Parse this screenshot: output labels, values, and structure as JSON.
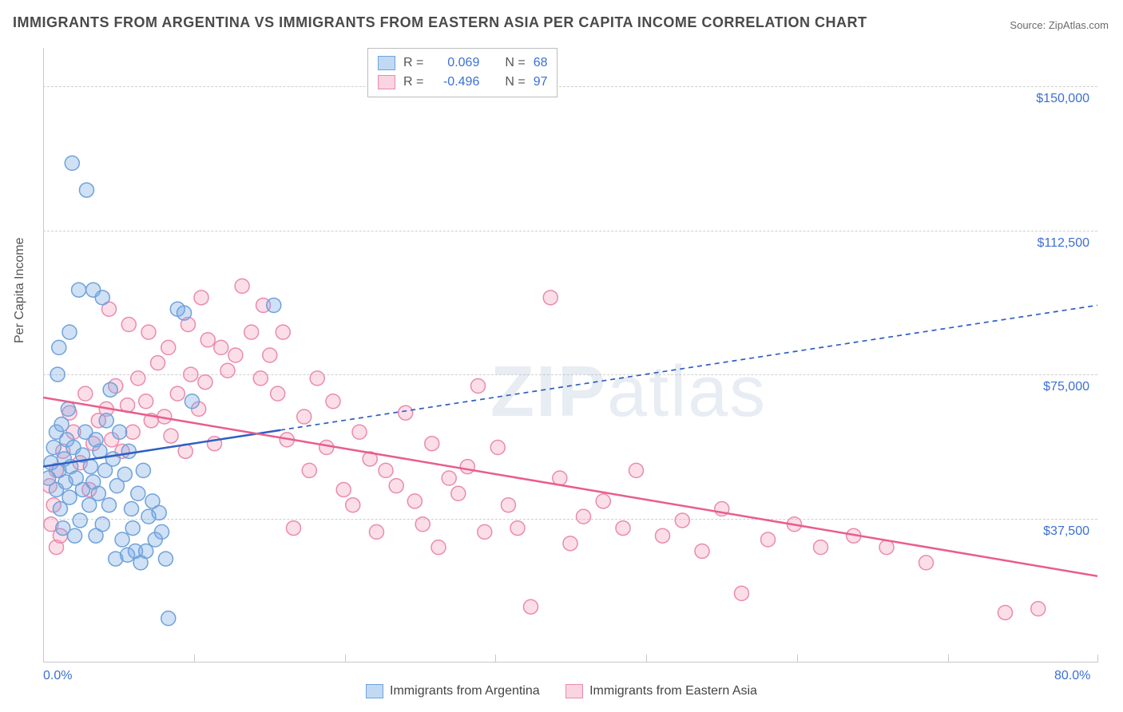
{
  "title": "IMMIGRANTS FROM ARGENTINA VS IMMIGRANTS FROM EASTERN ASIA PER CAPITA INCOME CORRELATION CHART",
  "source_label": "Source:",
  "source_name": "ZipAtlas.com",
  "watermark": {
    "bold": "ZIP",
    "rest": "atlas"
  },
  "chart": {
    "type": "scatter",
    "background_color": "#ffffff",
    "grid_color": "#d0d0d0",
    "axis_color": "#c8c8c8",
    "label_color": "#3b6fd6",
    "ylabel": "Per Capita Income",
    "ylabel_color": "#555555",
    "xlim": [
      0,
      80
    ],
    "ylim": [
      0,
      160000
    ],
    "x_tick_labels": {
      "min": "0.0%",
      "max": "80.0%"
    },
    "x_tick_positions_pct": [
      0,
      14.3,
      28.6,
      42.9,
      57.2,
      71.5,
      85.8,
      100
    ],
    "y_ticks": [
      {
        "value": 37500,
        "label": "$37,500"
      },
      {
        "value": 75000,
        "label": "$75,000"
      },
      {
        "value": 112500,
        "label": "$112,500"
      },
      {
        "value": 150000,
        "label": "$150,000"
      }
    ],
    "marker_radius": 9,
    "marker_stroke_width": 1.5,
    "series": [
      {
        "id": "argentina",
        "label": "Immigrants from Argentina",
        "fill": "rgba(120,170,230,0.35)",
        "stroke": "#6fa2da",
        "swatch_fill": "rgba(120,170,230,0.45)",
        "swatch_border": "#6fa2da",
        "stats": {
          "R": "0.069",
          "N": "68"
        },
        "trend": {
          "solid": {
            "x1": 0,
            "y1": 51000,
            "x2": 18,
            "y2": 60500
          },
          "dashed": {
            "x1": 18,
            "y1": 60500,
            "x2": 80,
            "y2": 93000
          },
          "color": "#2f5fc4",
          "width": 2.5,
          "dash": "6,5"
        },
        "points": [
          [
            0.4,
            48000
          ],
          [
            0.6,
            52000
          ],
          [
            0.8,
            56000
          ],
          [
            1.0,
            60000
          ],
          [
            1.0,
            45000
          ],
          [
            1.1,
            75000
          ],
          [
            1.2,
            50000
          ],
          [
            1.3,
            40000
          ],
          [
            1.4,
            62000
          ],
          [
            1.5,
            35000
          ],
          [
            1.6,
            53000
          ],
          [
            1.7,
            47000
          ],
          [
            1.8,
            58000
          ],
          [
            1.9,
            66000
          ],
          [
            2.0,
            43000
          ],
          [
            2.1,
            51000
          ],
          [
            2.2,
            130000
          ],
          [
            2.3,
            56000
          ],
          [
            2.4,
            33000
          ],
          [
            2.5,
            48000
          ],
          [
            2.7,
            97000
          ],
          [
            2.8,
            37000
          ],
          [
            3.0,
            45000
          ],
          [
            3.0,
            54000
          ],
          [
            3.2,
            60000
          ],
          [
            3.3,
            123000
          ],
          [
            3.5,
            41000
          ],
          [
            3.6,
            51000
          ],
          [
            3.8,
            47000
          ],
          [
            4.0,
            58000
          ],
          [
            4.0,
            33000
          ],
          [
            4.2,
            44000
          ],
          [
            4.3,
            55000
          ],
          [
            4.5,
            36000
          ],
          [
            4.7,
            50000
          ],
          [
            4.8,
            63000
          ],
          [
            5.0,
            41000
          ],
          [
            5.1,
            71000
          ],
          [
            5.3,
            53000
          ],
          [
            5.5,
            27000
          ],
          [
            5.6,
            46000
          ],
          [
            5.8,
            60000
          ],
          [
            6.0,
            32000
          ],
          [
            6.2,
            49000
          ],
          [
            6.4,
            28000
          ],
          [
            6.5,
            55000
          ],
          [
            6.7,
            40000
          ],
          [
            6.8,
            35000
          ],
          [
            7.0,
            29000
          ],
          [
            7.2,
            44000
          ],
          [
            7.4,
            26000
          ],
          [
            7.6,
            50000
          ],
          [
            7.8,
            29000
          ],
          [
            8.0,
            38000
          ],
          [
            8.3,
            42000
          ],
          [
            8.5,
            32000
          ],
          [
            8.8,
            39000
          ],
          [
            9.0,
            34000
          ],
          [
            9.3,
            27000
          ],
          [
            9.5,
            11500
          ],
          [
            10.2,
            92000
          ],
          [
            10.7,
            91000
          ],
          [
            11.3,
            68000
          ],
          [
            3.8,
            97000
          ],
          [
            4.5,
            95000
          ],
          [
            1.2,
            82000
          ],
          [
            2.0,
            86000
          ],
          [
            17.5,
            93000
          ]
        ]
      },
      {
        "id": "eastern_asia",
        "label": "Immigrants from Eastern Asia",
        "fill": "rgba(245,160,190,0.35)",
        "stroke": "#e98bad",
        "swatch_fill": "rgba(245,160,190,0.45)",
        "swatch_border": "#e98bad",
        "stats": {
          "R": "-0.496",
          "N": "97"
        },
        "trend": {
          "solid": {
            "x1": 0,
            "y1": 69000,
            "x2": 80,
            "y2": 22500
          },
          "color": "#e95d8a",
          "width": 2.5
        },
        "points": [
          [
            0.6,
            36000
          ],
          [
            1.0,
            50000
          ],
          [
            1.5,
            55000
          ],
          [
            2.0,
            65000
          ],
          [
            2.3,
            60000
          ],
          [
            2.8,
            52000
          ],
          [
            3.2,
            70000
          ],
          [
            3.5,
            45000
          ],
          [
            3.8,
            57000
          ],
          [
            4.2,
            63000
          ],
          [
            4.8,
            66000
          ],
          [
            5.2,
            58000
          ],
          [
            5.5,
            72000
          ],
          [
            6.0,
            55000
          ],
          [
            6.4,
            67000
          ],
          [
            6.8,
            60000
          ],
          [
            7.2,
            74000
          ],
          [
            7.8,
            68000
          ],
          [
            8.2,
            63000
          ],
          [
            8.7,
            78000
          ],
          [
            9.2,
            64000
          ],
          [
            9.7,
            59000
          ],
          [
            10.2,
            70000
          ],
          [
            10.8,
            55000
          ],
          [
            11.2,
            75000
          ],
          [
            11.8,
            66000
          ],
          [
            12.3,
            73000
          ],
          [
            13.0,
            57000
          ],
          [
            13.5,
            82000
          ],
          [
            14.0,
            76000
          ],
          [
            14.6,
            80000
          ],
          [
            15.1,
            98000
          ],
          [
            15.8,
            86000
          ],
          [
            16.5,
            74000
          ],
          [
            17.2,
            80000
          ],
          [
            17.8,
            70000
          ],
          [
            18.5,
            58000
          ],
          [
            19.0,
            35000
          ],
          [
            19.8,
            64000
          ],
          [
            20.2,
            50000
          ],
          [
            20.8,
            74000
          ],
          [
            21.5,
            56000
          ],
          [
            22.0,
            68000
          ],
          [
            22.8,
            45000
          ],
          [
            23.5,
            41000
          ],
          [
            24.0,
            60000
          ],
          [
            24.8,
            53000
          ],
          [
            25.3,
            34000
          ],
          [
            26.0,
            50000
          ],
          [
            26.8,
            46000
          ],
          [
            27.5,
            65000
          ],
          [
            28.2,
            42000
          ],
          [
            28.8,
            36000
          ],
          [
            29.5,
            57000
          ],
          [
            30.0,
            30000
          ],
          [
            30.8,
            48000
          ],
          [
            31.5,
            44000
          ],
          [
            32.2,
            51000
          ],
          [
            33.0,
            72000
          ],
          [
            33.5,
            34000
          ],
          [
            34.5,
            56000
          ],
          [
            35.3,
            41000
          ],
          [
            36.0,
            35000
          ],
          [
            37.0,
            14500
          ],
          [
            38.5,
            95000
          ],
          [
            39.2,
            48000
          ],
          [
            40.0,
            31000
          ],
          [
            41.0,
            38000
          ],
          [
            42.5,
            42000
          ],
          [
            44.0,
            35000
          ],
          [
            45.0,
            50000
          ],
          [
            47.0,
            33000
          ],
          [
            48.5,
            37000
          ],
          [
            50.0,
            29000
          ],
          [
            51.5,
            40000
          ],
          [
            53.0,
            18000
          ],
          [
            55.0,
            32000
          ],
          [
            57.0,
            36000
          ],
          [
            59.0,
            30000
          ],
          [
            61.5,
            33000
          ],
          [
            64.0,
            30000
          ],
          [
            67.0,
            26000
          ],
          [
            73.0,
            13000
          ],
          [
            75.5,
            14000
          ],
          [
            5.0,
            92000
          ],
          [
            6.5,
            88000
          ],
          [
            8.0,
            86000
          ],
          [
            9.5,
            82000
          ],
          [
            11.0,
            88000
          ],
          [
            12.5,
            84000
          ],
          [
            16.7,
            93000
          ],
          [
            12.0,
            95000
          ],
          [
            18.2,
            86000
          ],
          [
            1.0,
            30000
          ],
          [
            1.3,
            33000
          ],
          [
            0.5,
            46000
          ],
          [
            0.8,
            41000
          ]
        ]
      }
    ],
    "legend_stats_labels": {
      "R": "R =",
      "N": "N ="
    }
  }
}
